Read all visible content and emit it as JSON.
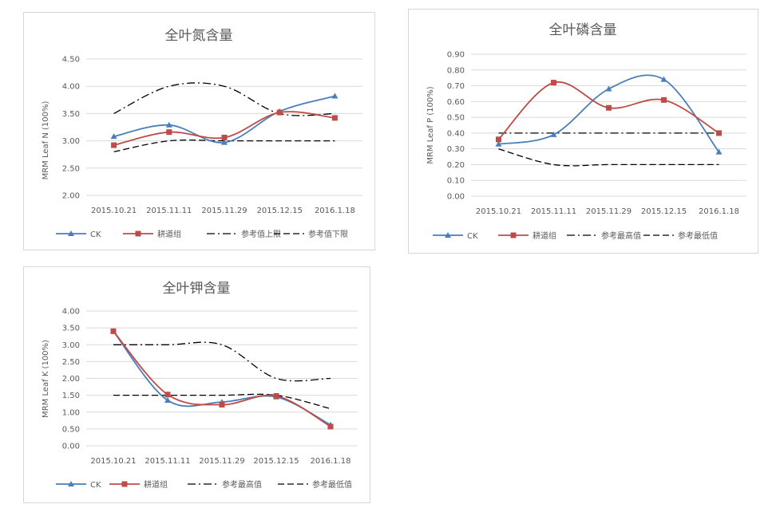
{
  "chart_data": [
    {
      "type": "line",
      "title": "全叶氮含量",
      "ylabel": "MRM Leaf N (100%)",
      "xlabel": "",
      "categories": [
        "2015.10.21",
        "2015.11.11",
        "2015.11.29",
        "2015.12.15",
        "2016.1.18"
      ],
      "yticks": [
        "2.00",
        "2.50",
        "3.00",
        "3.50",
        "4.00",
        "4.50"
      ],
      "ylim": [
        2.0,
        4.5
      ],
      "grid": true,
      "legend_position": "bottom",
      "series": [
        {
          "name": "CK",
          "values": [
            3.08,
            3.29,
            2.97,
            3.54,
            3.82
          ],
          "color": "#4a7ebb",
          "marker": "triangle",
          "dash": "none"
        },
        {
          "name": "耕道组",
          "values": [
            2.92,
            3.16,
            3.06,
            3.52,
            3.42
          ],
          "color": "#be4b48",
          "marker": "square",
          "dash": "none"
        },
        {
          "name": "参考值上限",
          "values": [
            3.5,
            4.0,
            4.0,
            3.5,
            3.5
          ],
          "color": "#000000",
          "marker": "none",
          "dash": "dashdot"
        },
        {
          "name": "参考值下限",
          "values": [
            2.8,
            3.0,
            3.0,
            3.0,
            3.0
          ],
          "color": "#000000",
          "marker": "none",
          "dash": "dash"
        }
      ]
    },
    {
      "type": "line",
      "title": "全叶磷含量",
      "ylabel": "MRM Leaf P (100%)",
      "xlabel": "",
      "categories": [
        "2015.10.21",
        "2015.11.11",
        "2015.11.29",
        "2015.12.15",
        "2016.1.18"
      ],
      "yticks": [
        "0.00",
        "0.10",
        "0.20",
        "0.30",
        "0.40",
        "0.50",
        "0.60",
        "0.70",
        "0.80",
        "0.90"
      ],
      "ylim": [
        0.0,
        0.9
      ],
      "grid": true,
      "legend_position": "bottom",
      "series": [
        {
          "name": "CK",
          "values": [
            0.33,
            0.39,
            0.68,
            0.74,
            0.28
          ],
          "color": "#4a7ebb",
          "marker": "triangle",
          "dash": "none"
        },
        {
          "name": "耕道组",
          "values": [
            0.36,
            0.72,
            0.56,
            0.61,
            0.4
          ],
          "color": "#be4b48",
          "marker": "square",
          "dash": "none"
        },
        {
          "name": "参考最高值",
          "values": [
            0.4,
            0.4,
            0.4,
            0.4,
            0.4
          ],
          "color": "#000000",
          "marker": "none",
          "dash": "dashdot"
        },
        {
          "name": "参考最低值",
          "values": [
            0.3,
            0.2,
            0.2,
            0.2,
            0.2
          ],
          "color": "#000000",
          "marker": "none",
          "dash": "dash"
        }
      ]
    },
    {
      "type": "line",
      "title": "全叶钾含量",
      "ylabel": "MRM Leaf K (100%)",
      "xlabel": "",
      "categories": [
        "2015.10.21",
        "2015.11.11",
        "2015.11.29",
        "2015.12.15",
        "2016.1.18"
      ],
      "yticks": [
        "0.00",
        "0.50",
        "1.00",
        "1.50",
        "2.00",
        "2.50",
        "3.00",
        "3.50",
        "4.00"
      ],
      "ylim": [
        0.0,
        4.0
      ],
      "grid": true,
      "legend_position": "bottom",
      "series": [
        {
          "name": "CK",
          "values": [
            3.4,
            1.35,
            1.3,
            1.45,
            0.62
          ],
          "color": "#4a7ebb",
          "marker": "triangle",
          "dash": "none"
        },
        {
          "name": "耕道组",
          "values": [
            3.4,
            1.52,
            1.22,
            1.48,
            0.57
          ],
          "color": "#be4b48",
          "marker": "square",
          "dash": "none"
        },
        {
          "name": "参考最高值",
          "values": [
            3.0,
            3.0,
            3.0,
            2.0,
            2.0
          ],
          "color": "#000000",
          "marker": "none",
          "dash": "dashdot"
        },
        {
          "name": "参考最低值",
          "values": [
            1.5,
            1.5,
            1.5,
            1.5,
            1.1
          ],
          "color": "#000000",
          "marker": "none",
          "dash": "dash"
        }
      ]
    }
  ]
}
